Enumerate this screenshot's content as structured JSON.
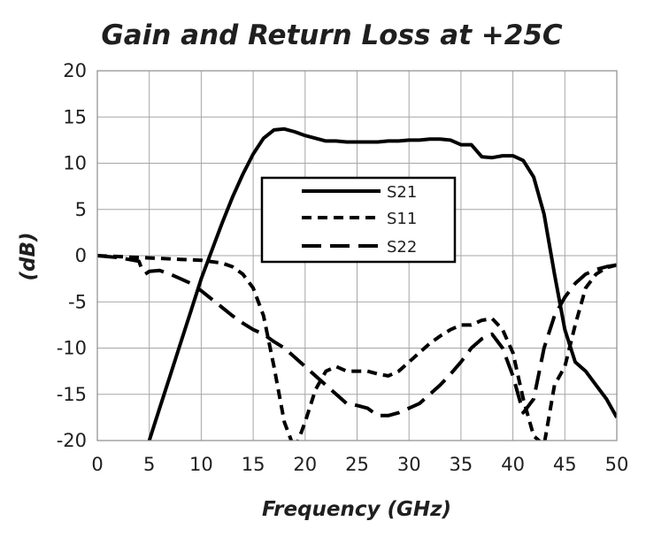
{
  "chart_data": {
    "type": "line",
    "title": "Gain and Return Loss at +25C",
    "xlabel": "Frequency (GHz)",
    "ylabel": "(dB)",
    "xlim": [
      0,
      50
    ],
    "ylim": [
      -20,
      20
    ],
    "xticks": [
      "0",
      "5",
      "10",
      "15",
      "20",
      "25",
      "30",
      "35",
      "40",
      "45",
      "50"
    ],
    "yticks": [
      "20",
      "15",
      "10",
      "5",
      "0",
      "-5",
      "-10",
      "-15",
      "-20"
    ],
    "grid": true,
    "legend_position": "center",
    "series": [
      {
        "name": "S21",
        "dash": "solid",
        "x": [
          5,
          6,
          7,
          8,
          9,
          10,
          11,
          12,
          13,
          14,
          15,
          16,
          17,
          18,
          19,
          20,
          21,
          22,
          23,
          24,
          25,
          26,
          27,
          28,
          29,
          30,
          31,
          32,
          33,
          34,
          35,
          36,
          37,
          38,
          39,
          40,
          41,
          42,
          43,
          44,
          45,
          46,
          47,
          48,
          49,
          50
        ],
        "y": [
          -20,
          -16.5,
          -13,
          -9.5,
          -6,
          -2.5,
          0.5,
          3.5,
          6.3,
          8.8,
          11,
          12.7,
          13.6,
          13.7,
          13.4,
          13,
          12.7,
          12.4,
          12.4,
          12.3,
          12.3,
          12.3,
          12.3,
          12.4,
          12.4,
          12.5,
          12.5,
          12.6,
          12.6,
          12.5,
          12,
          12,
          10.7,
          10.6,
          10.8,
          10.8,
          10.3,
          8.5,
          4.5,
          -2,
          -8,
          -11.5,
          -12.5,
          -14,
          -15.5,
          -17.5
        ]
      },
      {
        "name": "S11",
        "dash": "short-dash",
        "x": [
          0,
          2,
          4,
          6,
          8,
          10,
          12,
          13,
          14,
          15,
          16,
          17,
          18,
          19,
          20,
          21,
          22,
          23,
          24,
          25,
          26,
          27,
          28,
          29,
          30,
          31,
          32,
          33,
          34,
          35,
          36,
          37,
          38,
          39,
          40,
          41,
          42,
          43,
          44,
          45,
          46,
          47,
          48,
          49,
          50
        ],
        "y": [
          0,
          -0.1,
          -0.2,
          -0.3,
          -0.4,
          -0.5,
          -0.8,
          -1.2,
          -2,
          -3.5,
          -6.5,
          -12,
          -18,
          -21,
          -18,
          -14.5,
          -12.5,
          -12,
          -12.5,
          -12.5,
          -12.5,
          -12.8,
          -13,
          -12.5,
          -11.5,
          -10.5,
          -9.5,
          -8.7,
          -8,
          -7.5,
          -7.5,
          -7,
          -6.8,
          -8,
          -10.5,
          -15.5,
          -19.5,
          -20.5,
          -14,
          -12,
          -7.5,
          -3.5,
          -2,
          -1.3,
          -1
        ]
      },
      {
        "name": "S22",
        "dash": "long-dash",
        "x": [
          0,
          2,
          3,
          4,
          4.3,
          4.6,
          5,
          6,
          7,
          8,
          9,
          10,
          11,
          12,
          13,
          14,
          15,
          16,
          17,
          18,
          19,
          20,
          21,
          22,
          23,
          24,
          25,
          26,
          27,
          28,
          29,
          30,
          31,
          32,
          33,
          34,
          35,
          36,
          37,
          38,
          39,
          40,
          41,
          42,
          43,
          44,
          45,
          46,
          47,
          48,
          49,
          50
        ],
        "y": [
          0,
          -0.2,
          -0.4,
          -0.6,
          -1.5,
          -2,
          -1.7,
          -1.6,
          -2,
          -2.5,
          -3,
          -3.8,
          -4.7,
          -5.6,
          -6.5,
          -7.3,
          -8,
          -8.5,
          -9.3,
          -10,
          -11,
          -12,
          -13,
          -14,
          -15,
          -16,
          -16.2,
          -16.5,
          -17.3,
          -17.3,
          -17,
          -16.5,
          -16,
          -15,
          -14,
          -12.8,
          -11.5,
          -10,
          -9,
          -8.5,
          -10,
          -13,
          -17,
          -15.5,
          -10,
          -6.5,
          -4.5,
          -3,
          -2,
          -1.5,
          -1.2,
          -1
        ]
      }
    ]
  }
}
